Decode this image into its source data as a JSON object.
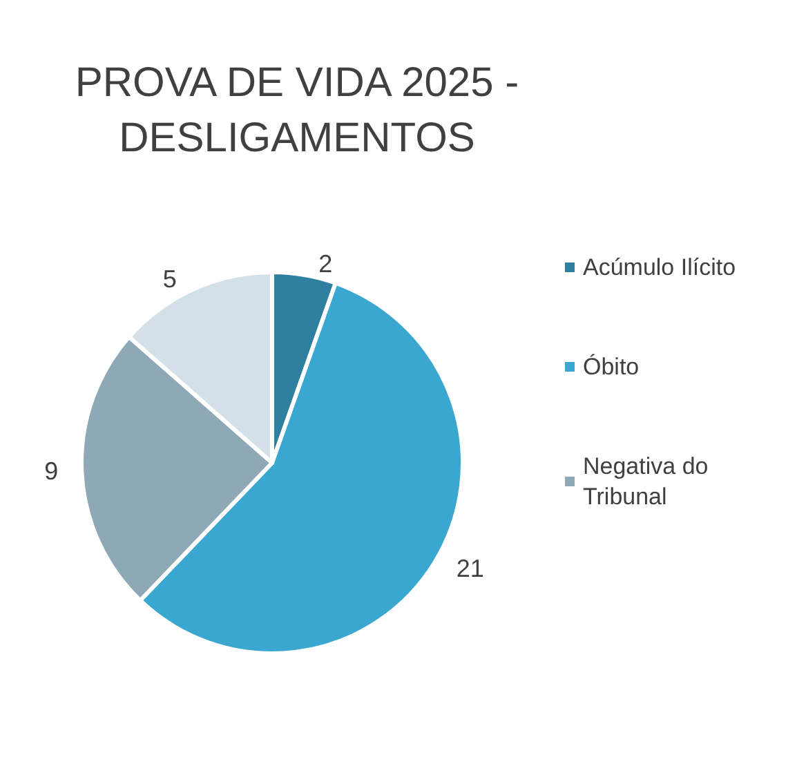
{
  "chart_data": {
    "type": "pie",
    "title": "PROVA DE VIDA 2025 -\nDESLIGAMENTOS",
    "categories": [
      "Acúmulo Ilícito",
      "Óbito",
      "Negativa do Tribunal",
      null
    ],
    "values": [
      2,
      21,
      9,
      5
    ],
    "colors": [
      "#2e7fa0",
      "#3aa7d0",
      "#8fa8b6",
      "#d3e0e8"
    ],
    "data_labels": true,
    "legend": "right"
  }
}
